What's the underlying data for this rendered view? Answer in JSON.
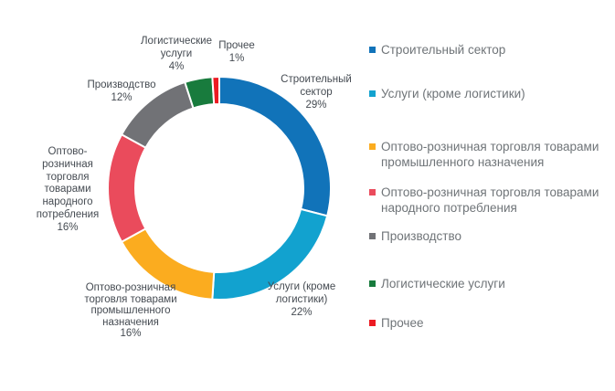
{
  "chart_data": {
    "type": "pie",
    "subtype": "donut",
    "title": "",
    "legend_position": "right",
    "donut_hole_ratio": 0.75,
    "start_angle_deg": 0,
    "direction": "clockwise",
    "units": "%",
    "categories": [
      "Строительный сектор",
      "Услуги (кроме логистики)",
      "Оптово-розничная торговля товарами промышленного назначения",
      "Оптово-розничная торговля товарами народного потребления",
      "Производство",
      "Логистические услуги",
      "Прочее"
    ],
    "values": [
      29,
      22,
      16,
      16,
      12,
      4,
      1
    ],
    "slices": [
      {
        "label": "Строительный сектор",
        "value": 29,
        "color": "#1173b9",
        "label_block": "Строительный\nсектор\n29%"
      },
      {
        "label": "Услуги (кроме логистики)",
        "value": 22,
        "color": "#12a2cf",
        "label_block": "Услуги (кроме\nлогистики)\n22%"
      },
      {
        "label": "Оптово-розничная торговля товарами промышленного назначения",
        "value": 16,
        "color": "#fbac1f",
        "label_block": "Оптово-розничная\nторговля товарами\nпромышленного\nназначения\n16%"
      },
      {
        "label": "Оптово-розничная торговля товарами народного потребления",
        "value": 16,
        "color": "#ea4b5c",
        "label_block": "Оптово-\nрозничная\nторговля\nтоварами\nнародного\nпотребления\n16%"
      },
      {
        "label": "Производство",
        "value": 12,
        "color": "#717276",
        "label_block": "Производство\n12%"
      },
      {
        "label": "Логистические услуги",
        "value": 4,
        "color": "#187b3d",
        "label_block": "Логистические\nуслуги\n4%"
      },
      {
        "label": "Прочее",
        "value": 1,
        "color": "#ec1b23",
        "label_block": "Прочее\n1%"
      }
    ]
  },
  "legend": {
    "items": [
      {
        "label": "Строительный сектор",
        "color": "#1173b9"
      },
      {
        "label": "Услуги (кроме логистики)",
        "color": "#12a2cf"
      },
      {
        "label": "Оптово-розничная торговля товарами промышленного назначения",
        "color": "#fbac1f"
      },
      {
        "label": "Оптово-розничная торговля товарами народного потребления",
        "color": "#ea4b5c"
      },
      {
        "label": "Производство",
        "color": "#717276"
      },
      {
        "label": "Логистические услуги",
        "color": "#187b3d"
      },
      {
        "label": "Прочее",
        "color": "#ec1b23"
      }
    ]
  }
}
